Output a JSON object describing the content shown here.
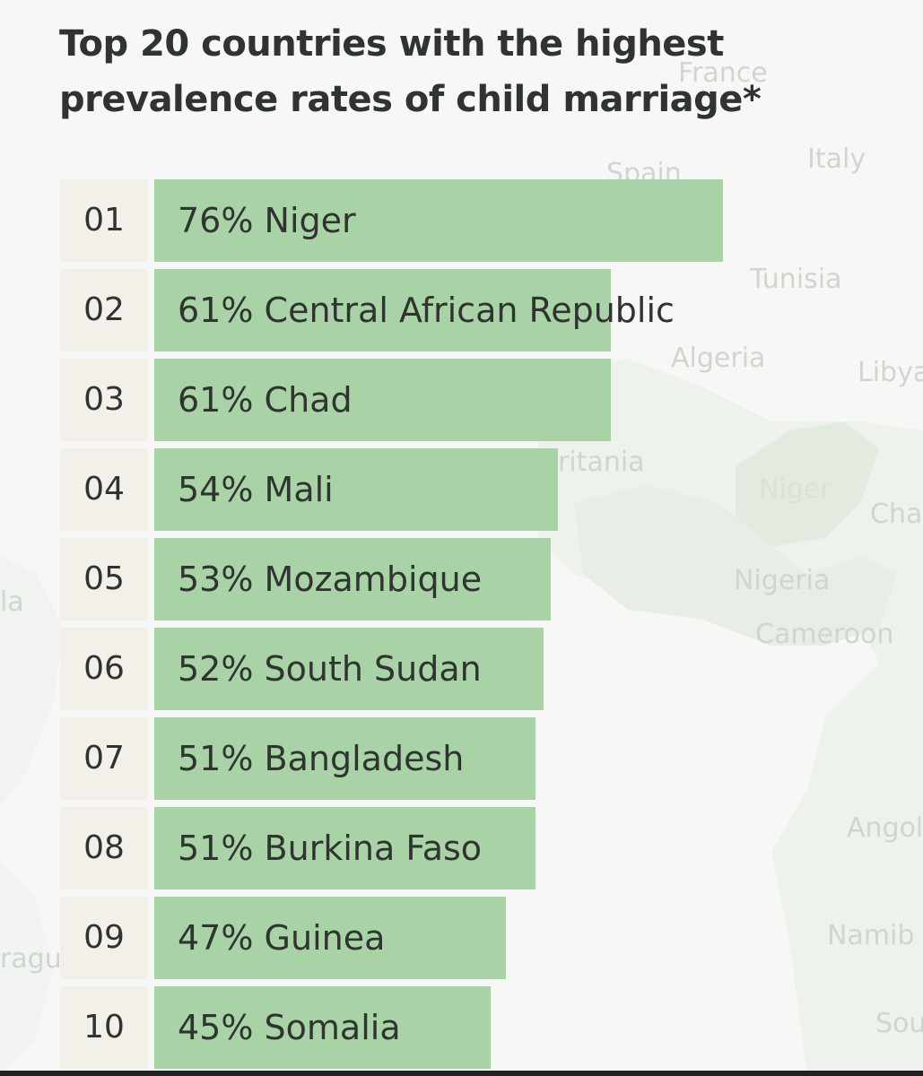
{
  "map_labels": [
    {
      "id": "france",
      "text": "France"
    },
    {
      "id": "italy",
      "text": "Italy"
    },
    {
      "id": "spain",
      "text": "Spain"
    },
    {
      "id": "tunisia",
      "text": "Tunisia"
    },
    {
      "id": "algeria",
      "text": "Algeria"
    },
    {
      "id": "libya",
      "text": "Libya"
    },
    {
      "id": "mauritania",
      "text": "ritania"
    },
    {
      "id": "niger",
      "text": "Niger"
    },
    {
      "id": "chad",
      "text": "Cha"
    },
    {
      "id": "nigeria",
      "text": "Nigeria"
    },
    {
      "id": "cameroon",
      "text": "Cameroon"
    },
    {
      "id": "angola",
      "text": "Angol"
    },
    {
      "id": "namibia",
      "text": "Namib"
    },
    {
      "id": "south",
      "text": "Sou"
    },
    {
      "id": "nicaragua",
      "text": "ragu"
    },
    {
      "id": "la",
      "text": "la"
    }
  ],
  "colors": {
    "bar": "#a9d3a6",
    "rank_box": "#f3efe9",
    "text": "#2f3431",
    "map_text": "#cfd6cf",
    "land": "#e9eee8"
  },
  "chart_data": {
    "type": "bar",
    "orientation": "horizontal",
    "title": "Top 20 countries with the highest prevalence rates of child marriage*",
    "title_lines": [
      "Top 20 countries with the highest",
      "prevalence rates of child marriage*"
    ],
    "unit": "%",
    "xlim": [
      0,
      76
    ],
    "rows": [
      {
        "rank": "01",
        "country": "Niger",
        "value": 76,
        "label": "76% Niger"
      },
      {
        "rank": "02",
        "country": "Central African Republic",
        "value": 61,
        "label": "61% Central African Republic"
      },
      {
        "rank": "03",
        "country": "Chad",
        "value": 61,
        "label": "61% Chad"
      },
      {
        "rank": "04",
        "country": "Mali",
        "value": 54,
        "label": "54% Mali"
      },
      {
        "rank": "05",
        "country": "Mozambique",
        "value": 53,
        "label": "53% Mozambique"
      },
      {
        "rank": "06",
        "country": "South Sudan",
        "value": 52,
        "label": "52% South Sudan"
      },
      {
        "rank": "07",
        "country": "Bangladesh",
        "value": 51,
        "label": "51% Bangladesh"
      },
      {
        "rank": "08",
        "country": "Burkina Faso",
        "value": 51,
        "label": "51% Burkina Faso"
      },
      {
        "rank": "09",
        "country": "Guinea",
        "value": 47,
        "label": "47% Guinea"
      },
      {
        "rank": "10",
        "country": "Somalia",
        "value": 45,
        "label": "45% Somalia"
      }
    ]
  }
}
